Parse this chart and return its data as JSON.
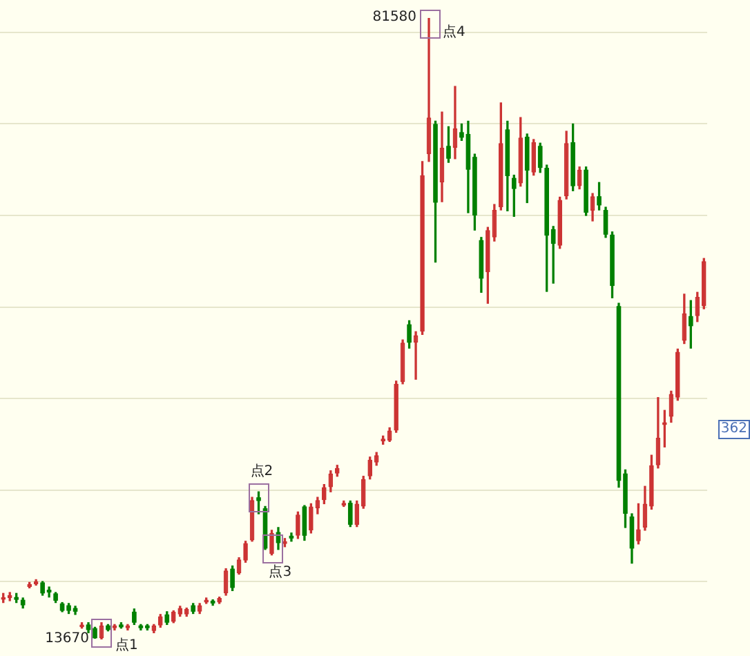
{
  "chart_data": {
    "type": "candlestick",
    "categories": [
      null,
      null,
      null,
      null,
      null,
      null,
      null,
      null,
      null,
      null,
      null,
      null,
      null,
      null,
      null,
      null,
      null,
      null,
      null,
      null,
      null,
      null,
      null,
      null,
      null,
      null,
      null,
      null,
      null,
      null,
      null,
      null,
      null,
      null,
      null,
      null,
      null,
      null,
      null,
      null,
      null,
      null,
      null,
      null,
      null,
      null,
      null,
      null,
      null,
      null,
      null,
      null,
      null,
      null,
      null,
      null,
      null,
      null,
      null,
      null,
      null,
      null,
      null,
      null,
      null,
      null,
      null,
      null,
      null,
      null,
      null,
      null,
      null,
      null,
      null,
      null,
      null,
      null,
      null,
      null,
      null,
      null,
      null,
      null,
      null,
      null,
      null,
      null,
      null,
      null,
      null,
      null,
      null,
      null,
      null,
      null,
      null,
      null,
      null,
      null,
      null,
      null,
      null,
      null,
      null,
      null,
      null,
      null
    ],
    "ohlc": [
      [
        18000,
        18700,
        17700,
        18300
      ],
      [
        18200,
        18800,
        17900,
        18500
      ],
      [
        18300,
        18700,
        17700,
        18000
      ],
      [
        18000,
        18200,
        17100,
        17400
      ],
      [
        19400,
        19900,
        19300,
        19700
      ],
      [
        19700,
        20200,
        19600,
        20000
      ],
      [
        19900,
        20000,
        18500,
        18700
      ],
      [
        19100,
        19400,
        18300,
        18800
      ],
      [
        18700,
        18800,
        17700,
        17900
      ],
      [
        17600,
        17700,
        16700,
        16800
      ],
      [
        17400,
        17600,
        16500,
        16800
      ],
      [
        17100,
        17300,
        16400,
        16700
      ],
      [
        15000,
        15500,
        14900,
        15300
      ],
      [
        15300,
        15500,
        14400,
        14700
      ],
      [
        14900,
        15000,
        13800,
        13800
      ],
      [
        13800,
        15500,
        13670,
        15200
      ],
      [
        15200,
        15300,
        14600,
        14700
      ],
      [
        14900,
        15300,
        14700,
        15200
      ],
      [
        15300,
        15500,
        14900,
        15000
      ],
      [
        14900,
        15300,
        14700,
        15200
      ],
      [
        16700,
        17000,
        15300,
        15500
      ],
      [
        15200,
        15300,
        14700,
        14900
      ],
      [
        15200,
        15300,
        14700,
        14900
      ],
      [
        14600,
        15300,
        14400,
        15200
      ],
      [
        15200,
        16400,
        15000,
        16200
      ],
      [
        16400,
        16700,
        15300,
        15500
      ],
      [
        15600,
        16800,
        15500,
        16700
      ],
      [
        16400,
        17300,
        16200,
        17100
      ],
      [
        16400,
        17100,
        16200,
        17000
      ],
      [
        17400,
        17600,
        16500,
        16700
      ],
      [
        16700,
        17600,
        16500,
        17400
      ],
      [
        17700,
        18200,
        17600,
        18000
      ],
      [
        17900,
        18000,
        17400,
        17600
      ],
      [
        17700,
        18300,
        17600,
        18200
      ],
      [
        18700,
        21400,
        18500,
        21200
      ],
      [
        21400,
        21700,
        19000,
        19300
      ],
      [
        20900,
        22600,
        20800,
        22400
      ],
      [
        22300,
        24400,
        22100,
        24200
      ],
      [
        24500,
        29200,
        24400,
        28900
      ],
      [
        29200,
        29800,
        27400,
        28800
      ],
      [
        28000,
        28200,
        23500,
        23600
      ],
      [
        23000,
        25600,
        22900,
        25300
      ],
      [
        25400,
        25900,
        23500,
        24200
      ],
      [
        24100,
        24700,
        23800,
        24400
      ],
      [
        25000,
        25300,
        24400,
        24700
      ],
      [
        25000,
        27600,
        24700,
        27300
      ],
      [
        28200,
        28300,
        24500,
        25000
      ],
      [
        25600,
        28500,
        25300,
        28200
      ],
      [
        28000,
        29200,
        27400,
        28900
      ],
      [
        28900,
        30600,
        28500,
        30300
      ],
      [
        30300,
        32100,
        29800,
        31800
      ],
      [
        31800,
        32700,
        31500,
        32400
      ],
      [
        28300,
        28800,
        28200,
        28600
      ],
      [
        28600,
        28800,
        26000,
        26200
      ],
      [
        26200,
        28800,
        26000,
        28500
      ],
      [
        28200,
        31500,
        28000,
        31200
      ],
      [
        31500,
        33600,
        31200,
        33300
      ],
      [
        33000,
        34100,
        32700,
        33800
      ],
      [
        35300,
        35900,
        35000,
        35600
      ],
      [
        35400,
        36800,
        35300,
        36500
      ],
      [
        36500,
        41900,
        36300,
        41600
      ],
      [
        41800,
        46400,
        41600,
        46100
      ],
      [
        48100,
        48500,
        45500,
        46100
      ],
      [
        46100,
        47300,
        42100,
        46900
      ],
      [
        47300,
        65900,
        47000,
        64400
      ],
      [
        66700,
        81580,
        65900,
        70700
      ],
      [
        70000,
        70300,
        54900,
        61400
      ],
      [
        63600,
        71300,
        61500,
        67400
      ],
      [
        67600,
        69700,
        65800,
        66200
      ],
      [
        67400,
        74100,
        66200,
        69500
      ],
      [
        69100,
        70000,
        68200,
        68500
      ],
      [
        68900,
        70300,
        60300,
        65000
      ],
      [
        66400,
        66700,
        58400,
        60000
      ],
      [
        57300,
        57600,
        51600,
        53100
      ],
      [
        53800,
        58700,
        50400,
        58400
      ],
      [
        57600,
        61200,
        57200,
        60600
      ],
      [
        60900,
        72300,
        60600,
        67900
      ],
      [
        69400,
        70300,
        60500,
        64300
      ],
      [
        64100,
        64400,
        59900,
        62900
      ],
      [
        63500,
        70700,
        63200,
        68500
      ],
      [
        68600,
        68900,
        61400,
        64900
      ],
      [
        64700,
        68300,
        64400,
        68000
      ],
      [
        67600,
        67900,
        64700,
        65200
      ],
      [
        65200,
        65500,
        51700,
        57800
      ],
      [
        58500,
        58800,
        52600,
        56900
      ],
      [
        56700,
        62000,
        56400,
        61700
      ],
      [
        62100,
        69200,
        61800,
        67900
      ],
      [
        68000,
        70000,
        62700,
        63200
      ],
      [
        63200,
        65300,
        62900,
        65000
      ],
      [
        65000,
        65300,
        60000,
        60300
      ],
      [
        60500,
        62400,
        59400,
        62100
      ],
      [
        62100,
        63600,
        60600,
        61100
      ],
      [
        60600,
        60900,
        57600,
        57900
      ],
      [
        57900,
        58200,
        51000,
        52300
      ],
      [
        50100,
        50400,
        30300,
        31000
      ],
      [
        31800,
        32200,
        25900,
        27400
      ],
      [
        27100,
        27400,
        22000,
        23600
      ],
      [
        24400,
        28500,
        24100,
        25700
      ],
      [
        25900,
        30400,
        25600,
        28500
      ],
      [
        28200,
        33800,
        27900,
        32700
      ],
      [
        32700,
        40100,
        32400,
        35700
      ],
      [
        37100,
        38700,
        34700,
        37400
      ],
      [
        38000,
        40800,
        37400,
        40500
      ],
      [
        40100,
        45400,
        39800,
        45100
      ],
      [
        46300,
        51400,
        46000,
        49300
      ],
      [
        49000,
        50700,
        45500,
        47900
      ],
      [
        49000,
        51600,
        48400,
        51100
      ],
      [
        50100,
        55300,
        49800,
        55000
      ]
    ],
    "colors": [
      "#cc3333",
      "#cc3333",
      "#008000",
      "#008000",
      "#cc3333",
      "#cc3333",
      "#008000",
      "#008000",
      "#008000",
      "#008000",
      "#008000",
      "#008000",
      "#cc3333",
      "#008000",
      "#008000",
      "#cc3333",
      "#008000",
      "#cc3333",
      "#008000",
      "#cc3333",
      "#008000",
      "#008000",
      "#008000",
      "#cc3333",
      "#cc3333",
      "#008000",
      "#cc3333",
      "#cc3333",
      "#cc3333",
      "#008000",
      "#cc3333",
      "#cc3333",
      "#008000",
      "#cc3333",
      "#cc3333",
      "#008000",
      "#cc3333",
      "#cc3333",
      "#cc3333",
      "#008000",
      "#008000",
      "#cc3333",
      "#008000",
      "#cc3333",
      "#008000",
      "#cc3333",
      "#008000",
      "#cc3333",
      "#cc3333",
      "#cc3333",
      "#cc3333",
      "#cc3333",
      "#cc3333",
      "#008000",
      "#cc3333",
      "#cc3333",
      "#cc3333",
      "#cc3333",
      "#cc3333",
      "#cc3333",
      "#cc3333",
      "#cc3333",
      "#008000",
      "#cc3333",
      "#cc3333",
      "#cc3333",
      "#008000",
      "#cc3333",
      "#008000",
      "#cc3333",
      "#008000",
      "#008000",
      "#008000",
      "#008000",
      "#cc3333",
      "#cc3333",
      "#cc3333",
      "#008000",
      "#008000",
      "#cc3333",
      "#008000",
      "#cc3333",
      "#008000",
      "#008000",
      "#008000",
      "#cc3333",
      "#cc3333",
      "#008000",
      "#cc3333",
      "#008000",
      "#cc3333",
      "#008000",
      "#008000",
      "#008000",
      "#008000",
      "#008000",
      "#008000",
      "#cc3333",
      "#cc3333",
      "#cc3333",
      "#cc3333",
      "#cc3333",
      "#cc3333",
      "#cc3333",
      "#cc3333",
      "#008000",
      "#cc3333",
      "#cc3333"
    ],
    "yticks": [
      {
        "value": 20000,
        "label": null
      },
      {
        "value": 30000,
        "label": null
      },
      {
        "value": 40000,
        "label": null
      },
      {
        "value": 50000,
        "label": null
      },
      {
        "value": 60000,
        "label": null
      },
      {
        "value": 70000,
        "label": null
      },
      {
        "value": 80000,
        "label": null
      }
    ],
    "grid": "y",
    "annotations": [
      "13670",
      "点1",
      "点2",
      "点3",
      "81580",
      "点4",
      "362"
    ]
  }
}
